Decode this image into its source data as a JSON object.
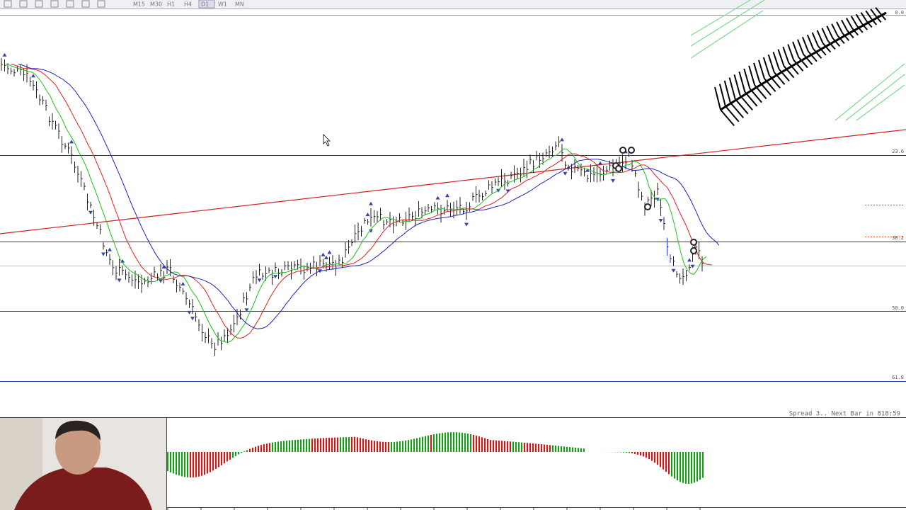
{
  "toolbar": {
    "timeframes": [
      "M15",
      "M30",
      "H1",
      "H4",
      "D1",
      "W1",
      "MN"
    ]
  },
  "chart": {
    "fib_levels": [
      "0.0",
      "23.6",
      "38.2",
      "50.0",
      "61.8"
    ]
  },
  "status": {
    "spread": "Spread  3.. Next Bar in 818:59"
  }
}
